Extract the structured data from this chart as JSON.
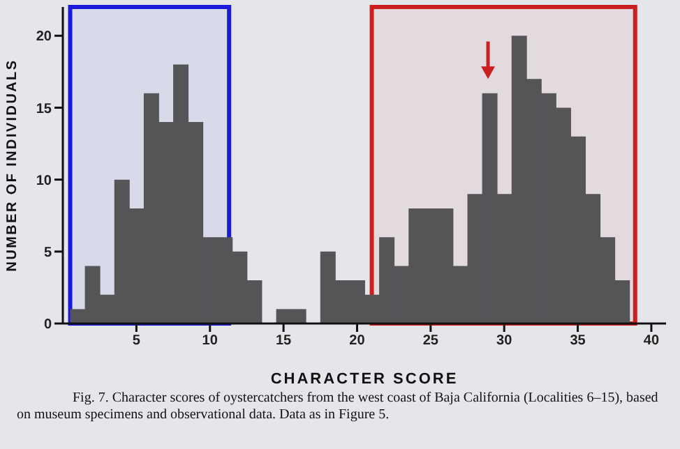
{
  "chart_data": {
    "type": "histogram",
    "xlabel": "CHARACTER SCORE",
    "ylabel": "NUMBER OF INDIVIDUALS",
    "bins": [
      0.5,
      1.5,
      2.5,
      3.5,
      4.5,
      5.5,
      6.5,
      7.5,
      8.5,
      9.5,
      10.5,
      11.5,
      12.5,
      13.5,
      14.5,
      15.5,
      16.5,
      17.5,
      18.5,
      19.5,
      20.5,
      21.5,
      22.5,
      23.5,
      24.5,
      25.5,
      26.5,
      27.5,
      28.5,
      29.5,
      30.5,
      31.5,
      32.5,
      33.5,
      34.5,
      35.5,
      36.5,
      37.5,
      38.5
    ],
    "values": [
      1,
      4,
      2,
      10,
      8,
      16,
      14,
      18,
      14,
      6,
      6,
      5,
      3,
      0,
      1,
      1,
      0,
      5,
      3,
      3,
      2,
      6,
      4,
      8,
      8,
      8,
      4,
      9,
      16,
      9,
      20,
      17,
      16,
      15,
      13,
      9,
      6,
      3
    ],
    "color": "#555558",
    "xlim": [
      0,
      41
    ],
    "xticks": [
      5,
      10,
      15,
      20,
      25,
      30,
      35,
      40
    ],
    "ylim": [
      0,
      22
    ],
    "yticks": [
      0,
      5,
      10,
      15,
      20
    ],
    "grid": false,
    "bands": [
      {
        "axis": "x",
        "from": 0.5,
        "to": 11.3,
        "color": "#1a1ad8"
      },
      {
        "axis": "x",
        "from": 21,
        "to": 38.9,
        "color": "#cc1f1f"
      }
    ],
    "annotations": [
      "Fig. 7. Character scores of oystercatchers from the west coast of Baja California (Localities 6–15), based on museum specimens and observational data. Data as in Figure 5."
    ]
  }
}
